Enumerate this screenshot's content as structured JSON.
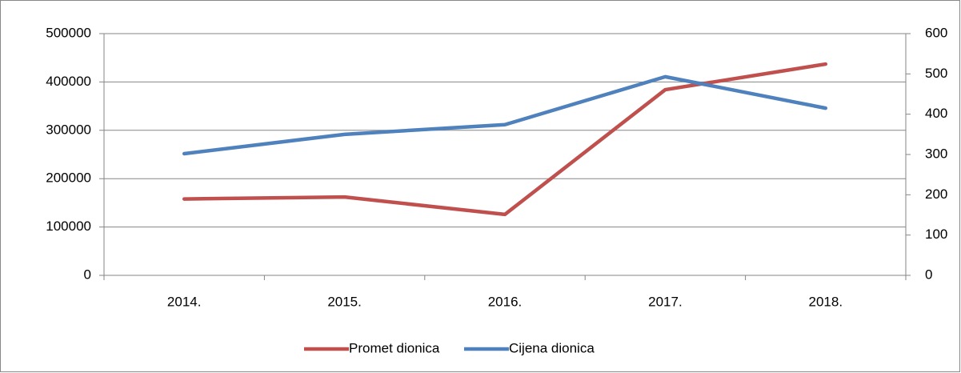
{
  "chart_data": {
    "type": "line",
    "categories": [
      "2014.",
      "2015.",
      "2016.",
      "2017.",
      "2018."
    ],
    "series": [
      {
        "name": "Promet dionica",
        "color": "#c0504d",
        "values": [
          158000,
          162000,
          126000,
          384000,
          437000
        ]
      },
      {
        "name": "Cijena dionica",
        "color": "#4f81bd",
        "axis": "y2",
        "values": [
          302,
          350,
          374,
          493,
          415
        ]
      }
    ],
    "ylim": [
      0,
      500000
    ],
    "yticks": [
      0,
      100000,
      200000,
      300000,
      400000,
      500000
    ],
    "y2lim": [
      0,
      600
    ],
    "y2ticks": [
      0,
      100,
      200,
      300,
      400,
      500,
      600
    ],
    "grid": true,
    "legend": "bottom"
  }
}
